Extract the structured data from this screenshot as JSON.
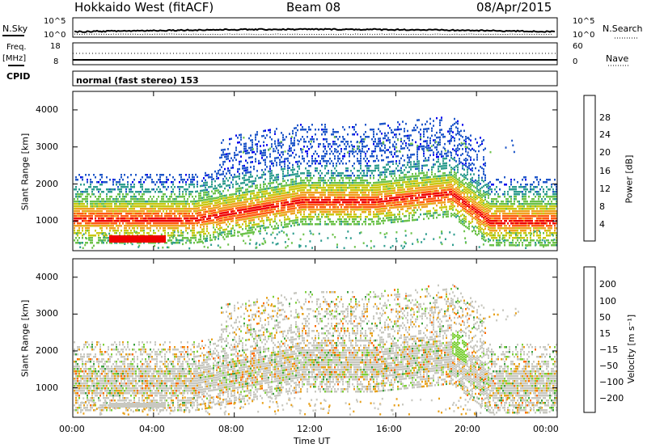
{
  "header": {
    "station": "Hokkaido West (fitACF)",
    "beam": "Beam 08",
    "date": "08/Apr/2015"
  },
  "noise_panel": {
    "left_label": "N.Sky",
    "right_label": "N.Search",
    "left_ticks": [
      "10^5",
      "10^0"
    ],
    "right_ticks": [
      "10^5",
      "10^0"
    ]
  },
  "freq_panel": {
    "left_label_1": "Freq.",
    "left_label_2": "[MHz]",
    "right_label": "Nave",
    "left_ticks": [
      "18",
      "8"
    ],
    "right_ticks": [
      "60",
      "0"
    ]
  },
  "cpid_panel": {
    "label": "CPID",
    "text": "normal (fast stereo) 153"
  },
  "chart_data": [
    {
      "type": "heatmap",
      "name": "power",
      "ylabel": "Slant Range [km]",
      "y_ticks": [
        "4000",
        "3000",
        "2000",
        "1000"
      ],
      "ylim": [
        200,
        4500
      ],
      "colorbar_label": "Power [dB]",
      "colorbar_ticks": [
        "28",
        "24",
        "20",
        "16",
        "12",
        "8",
        "4"
      ],
      "colorscale": [
        "#0000ee",
        "#1f57c9",
        "#2f9d8f",
        "#6cc24a",
        "#c8c812",
        "#f0a020",
        "#ff5a10",
        "#ee0000"
      ],
      "x_ticks": [
        "00:00",
        "04:00",
        "08:00",
        "12:00",
        "16:00",
        "20:00",
        "00:00"
      ],
      "grid": false
    },
    {
      "type": "heatmap",
      "name": "velocity",
      "ylabel": "Slant Range [km]",
      "y_ticks": [
        "4000",
        "3000",
        "2000",
        "1000"
      ],
      "ylim": [
        200,
        4500
      ],
      "colorbar_label": "Velocity [m s⁻¹]",
      "colorbar_ticks": [
        "200",
        "100",
        "50",
        "15",
        "−15",
        "−50",
        "−100",
        "−200"
      ],
      "colorscale": [
        "#2030b0",
        "#2a8a7a",
        "#3ca040",
        "#7ed03a",
        "#c8c8c0",
        "#e8a018",
        "#ff6a00",
        "#ee1010"
      ],
      "x_ticks": [
        "00:00",
        "04:00",
        "08:00",
        "12:00",
        "16:00",
        "20:00",
        "00:00"
      ],
      "grid": false
    }
  ],
  "x_axis_label": "Time UT"
}
